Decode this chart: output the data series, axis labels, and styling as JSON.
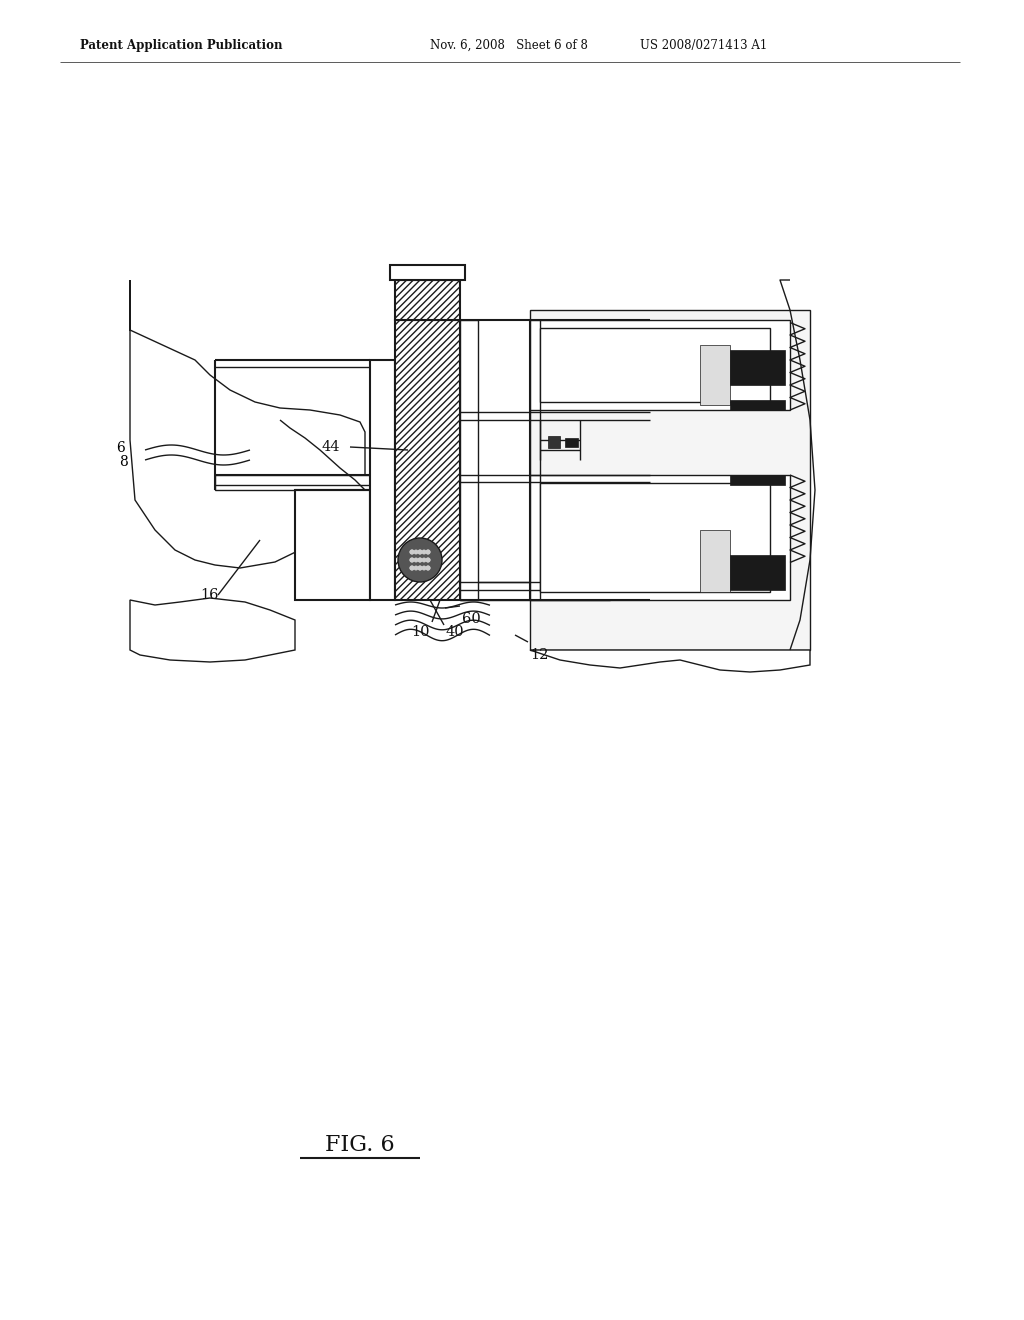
{
  "background_color": "#ffffff",
  "header_left": "Patent Application Publication",
  "header_center": "Nov. 6, 2008   Sheet 6 of 8",
  "header_right": "US 2008/0271413 A1",
  "figure_label": "FIG. 6",
  "line_color": "#1a1a1a",
  "dark_fill": "#1a1a1a",
  "mid_gray": "#888888",
  "light_gray": "#cccccc",
  "hatch_density": "/////"
}
